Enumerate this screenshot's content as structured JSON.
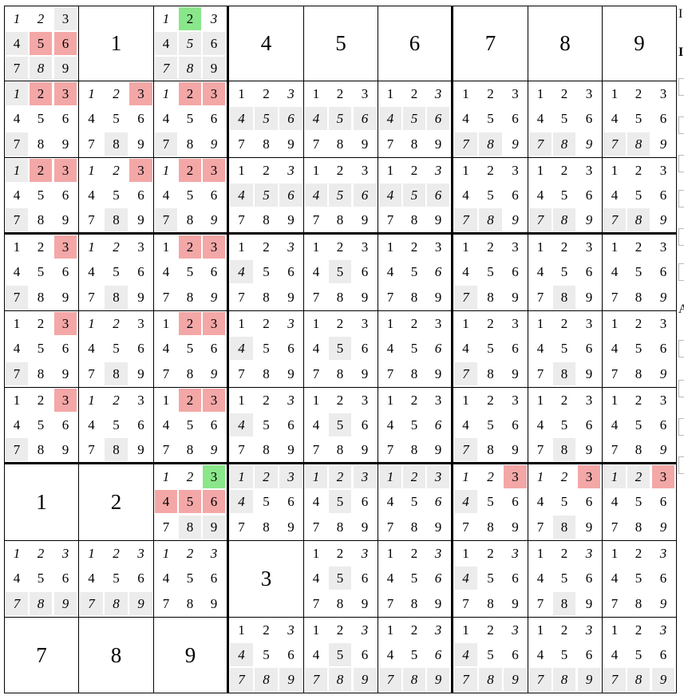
{
  "board": {
    "givens": [
      [
        null,
        "1",
        null,
        "4",
        "5",
        "6",
        "7",
        "8",
        "9"
      ],
      [
        null,
        null,
        null,
        null,
        null,
        null,
        null,
        null,
        null
      ],
      [
        null,
        null,
        null,
        null,
        null,
        null,
        null,
        null,
        null
      ],
      [
        null,
        null,
        null,
        null,
        null,
        null,
        null,
        null,
        null
      ],
      [
        null,
        null,
        null,
        null,
        null,
        null,
        null,
        null,
        null
      ],
      [
        null,
        null,
        null,
        null,
        null,
        null,
        null,
        null,
        null
      ],
      [
        "1",
        "2",
        null,
        null,
        null,
        null,
        null,
        null,
        null
      ],
      [
        null,
        null,
        null,
        "3",
        null,
        null,
        null,
        null,
        null
      ],
      [
        "7",
        "8",
        "9",
        null,
        null,
        null,
        null,
        null,
        null
      ]
    ],
    "candidate_digits": [
      "1",
      "2",
      "3",
      "4",
      "5",
      "6",
      "7",
      "8",
      "9"
    ],
    "candidates": [
      [
        "221144131",
        null,
        "252131331",
        "000000000",
        "000000000",
        "000000000",
        "000000000",
        "000000000",
        "000000000"
      ],
      [
        "344000100",
        "224000010",
        "244000102",
        "002333000",
        "000333000",
        "002333000",
        "000000332",
        "000000332",
        "000000332"
      ],
      [
        "344000100",
        "224000010",
        "244000102",
        "002333000",
        "000333000",
        "002333000",
        "000000332",
        "000000332",
        "000000332"
      ],
      [
        "004000100",
        "220000010",
        "044000002",
        "002300000",
        "000010000",
        "000002000",
        "000000300",
        "000000010",
        "000000002"
      ],
      [
        "004000100",
        "220000010",
        "044000002",
        "002300000",
        "000010000",
        "000002000",
        "000000300",
        "000000010",
        "000000002"
      ],
      [
        "004000100",
        "220000010",
        "044000002",
        "002300000",
        "000010000",
        "000002000",
        "000000300",
        "000000010",
        "000000002"
      ],
      [
        null,
        null,
        "225444011",
        "333300000",
        "333010000",
        "333002000",
        "224300000",
        "224000010",
        "334000002"
      ],
      [
        "222000333",
        "222000333",
        "222000000",
        null,
        "002010000",
        "002002000",
        "002300000",
        "002000010",
        "002000002"
      ],
      [
        null,
        null,
        null,
        "002300333",
        "002010333",
        "002002333",
        "002300333",
        "002000333",
        "002000333"
      ]
    ]
  },
  "colors": {
    "plain": "#ffffff",
    "shaded": "#ececec",
    "red_highlight": "#f4a7a7",
    "green_highlight": "#8ae68a",
    "grid_line": "#000000"
  },
  "side_panel_glyphs": [
    "I",
    "I",
    "A"
  ]
}
